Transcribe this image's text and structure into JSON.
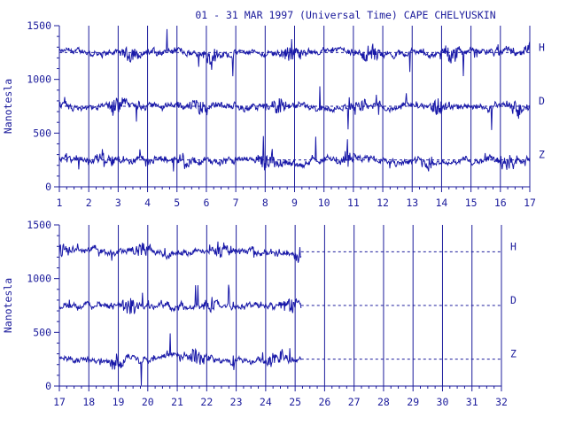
{
  "title": "01 - 31 MAR 1997 (Universal Time) CAPE CHELYUSKIN",
  "colors": {
    "trace": "#1818a8",
    "axis": "#1c1c9c",
    "background": "#ffffff"
  },
  "chart_data": [
    {
      "type": "line",
      "panel": "top",
      "ylabel": "Nanotesla",
      "xlim": [
        1,
        17
      ],
      "ylim": [
        0,
        1500
      ],
      "x_ticks": [
        "1",
        "2",
        "3",
        "4",
        "5",
        "6",
        "7",
        "8",
        "9",
        "10",
        "11",
        "12",
        "13",
        "14",
        "15",
        "16",
        "17"
      ],
      "y_ticks": [
        0,
        500,
        1000,
        1500
      ],
      "y_tick_labels": [
        "0",
        "500",
        "1000",
        "1500"
      ],
      "grid": "vertical lines at each day; dashed baselines at 250, 750, 1250",
      "series": [
        {
          "name": "H",
          "baseline": 1250
        },
        {
          "name": "D",
          "baseline": 750
        },
        {
          "name": "Z",
          "baseline": 250
        }
      ],
      "data_end_day": 17
    },
    {
      "type": "line",
      "panel": "bottom",
      "ylabel": "Nanotesla",
      "xlim": [
        17,
        32
      ],
      "ylim": [
        0,
        1500
      ],
      "x_ticks": [
        "17",
        "18",
        "19",
        "20",
        "21",
        "22",
        "23",
        "24",
        "25",
        "26",
        "27",
        "28",
        "29",
        "30",
        "31",
        "32"
      ],
      "y_ticks": [
        0,
        500,
        1000,
        1500
      ],
      "y_tick_labels": [
        "0",
        "500",
        "1000",
        "1500"
      ],
      "grid": "vertical lines at each day; dashed baselines at 250, 750, 1250",
      "series": [
        {
          "name": "H",
          "baseline": 1250
        },
        {
          "name": "D",
          "baseline": 750
        },
        {
          "name": "Z",
          "baseline": 250
        }
      ],
      "data_end_day": 25.2
    }
  ]
}
